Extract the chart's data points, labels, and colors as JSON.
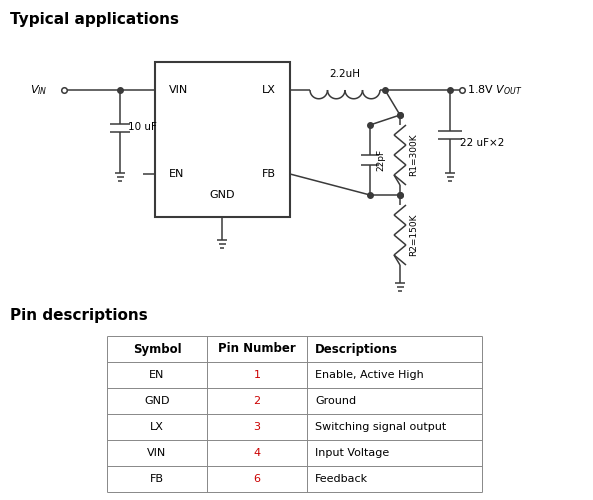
{
  "title_typical": "Typical applications",
  "title_pin": "Pin descriptions",
  "bg_color": "#ffffff",
  "line_color": "#3a3a3a",
  "title_color": "#000000",
  "pin_number_color": "#cc0000",
  "table_data": [
    [
      "EN",
      "1",
      "Enable, Active High"
    ],
    [
      "GND",
      "2",
      "Ground"
    ],
    [
      "LX",
      "3",
      "Switching signal output"
    ],
    [
      "VIN",
      "4",
      "Input Voltage"
    ],
    [
      "FB",
      "6",
      "Feedback"
    ]
  ],
  "table_headers": [
    "Symbol",
    "Pin Number",
    "Descriptions"
  ]
}
